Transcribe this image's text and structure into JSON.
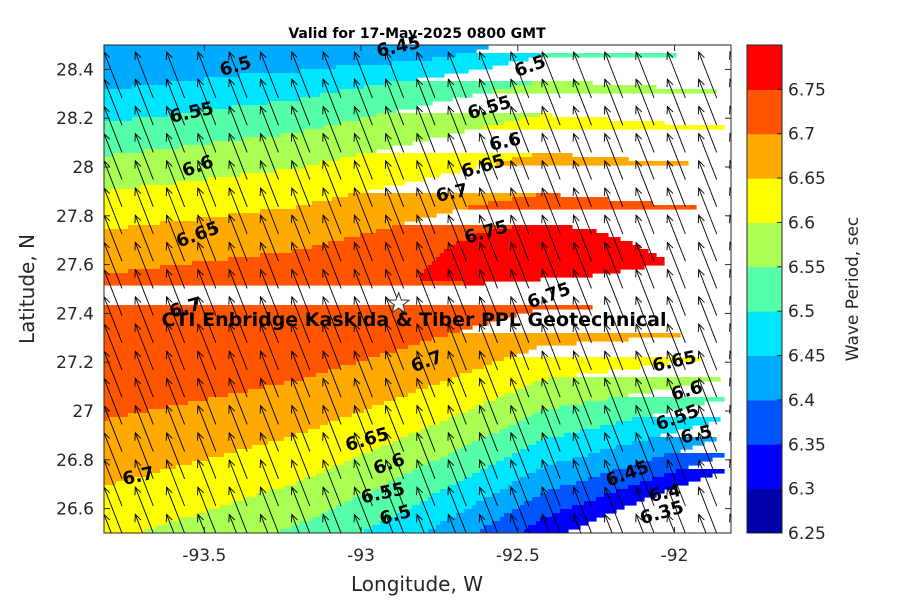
{
  "chart_data": {
    "type": "heatmap",
    "subtype": "filled-contour with wind/wave direction arrows",
    "title": "Valid for 17-May-2025 0800 GMT",
    "xlabel": "Longitude, W",
    "ylabel": "Latitude, N",
    "xlim": [
      -93.82,
      -91.82
    ],
    "ylim": [
      26.5,
      28.5
    ],
    "xticks": [
      -93.5,
      -93,
      -92.5,
      -92
    ],
    "xtick_labels": [
      "-93.5",
      "-93",
      "-92.5",
      "-92"
    ],
    "yticks": [
      26.6,
      26.8,
      27,
      27.2,
      27.4,
      27.6,
      27.8,
      28,
      28.2,
      28.4
    ],
    "ytick_labels": [
      "26.6",
      "26.8",
      "27",
      "27.2",
      "27.4",
      "27.6",
      "27.8",
      "28",
      "28.2",
      "28.4"
    ],
    "colorbar": {
      "label": "Wave Period, sec",
      "levels": [
        6.25,
        6.3,
        6.35,
        6.4,
        6.45,
        6.5,
        6.55,
        6.6,
        6.65,
        6.7,
        6.75,
        6.8
      ],
      "tick_labels": [
        "6.25",
        "6.3",
        "6.35",
        "6.4",
        "6.45",
        "6.5",
        "6.55",
        "6.6",
        "6.65",
        "6.7",
        "6.75"
      ],
      "colors": [
        "#0000aa",
        "#0000ff",
        "#0055ff",
        "#00aaff",
        "#00e5ff",
        "#55ffaa",
        "#aaff55",
        "#ffff00",
        "#ffaa00",
        "#ff5500",
        "#ff0000"
      ]
    },
    "contour_labels": [
      {
        "text": "6.45",
        "lon": -92.88,
        "lat": 28.49
      },
      {
        "text": "6.5",
        "lon": -93.4,
        "lat": 28.41
      },
      {
        "text": "6.5",
        "lon": -92.46,
        "lat": 28.41
      },
      {
        "text": "6.55",
        "lon": -93.54,
        "lat": 28.22
      },
      {
        "text": "6.55",
        "lon": -92.59,
        "lat": 28.24
      },
      {
        "text": "6.6",
        "lon": -93.52,
        "lat": 28.0
      },
      {
        "text": "6.6",
        "lon": -92.54,
        "lat": 28.1
      },
      {
        "text": "6.65",
        "lon": -92.61,
        "lat": 28.0
      },
      {
        "text": "6.65",
        "lon": -93.52,
        "lat": 27.72
      },
      {
        "text": "6.7",
        "lon": -92.71,
        "lat": 27.89
      },
      {
        "text": "6.7",
        "lon": -93.56,
        "lat": 27.42
      },
      {
        "text": "6.7",
        "lon": -92.79,
        "lat": 27.2
      },
      {
        "text": "6.7",
        "lon": -93.71,
        "lat": 26.73
      },
      {
        "text": "6.75",
        "lon": -92.6,
        "lat": 27.73
      },
      {
        "text": "6.75",
        "lon": -92.4,
        "lat": 27.47
      },
      {
        "text": "6.65",
        "lon": -92.0,
        "lat": 27.2
      },
      {
        "text": "6.6",
        "lon": -91.96,
        "lat": 27.08
      },
      {
        "text": "6.55",
        "lon": -91.99,
        "lat": 26.97
      },
      {
        "text": "6.5",
        "lon": -91.93,
        "lat": 26.9
      },
      {
        "text": "6.65",
        "lon": -92.98,
        "lat": 26.88
      },
      {
        "text": "6.6",
        "lon": -92.91,
        "lat": 26.78
      },
      {
        "text": "6.55",
        "lon": -92.93,
        "lat": 26.66
      },
      {
        "text": "6.5",
        "lon": -92.89,
        "lat": 26.57
      },
      {
        "text": "6.45",
        "lon": -92.15,
        "lat": 26.74
      },
      {
        "text": "6.4",
        "lon": -92.03,
        "lat": 26.66
      },
      {
        "text": "6.35",
        "lon": -92.04,
        "lat": 26.58
      }
    ],
    "site": {
      "label": "CTI Enbridge  Kaskida & Tiber PPL Geotechnical",
      "lon": -92.88,
      "lat": 27.44,
      "marker": "white-star"
    },
    "arrow_direction": "pointing north-northwest"
  }
}
